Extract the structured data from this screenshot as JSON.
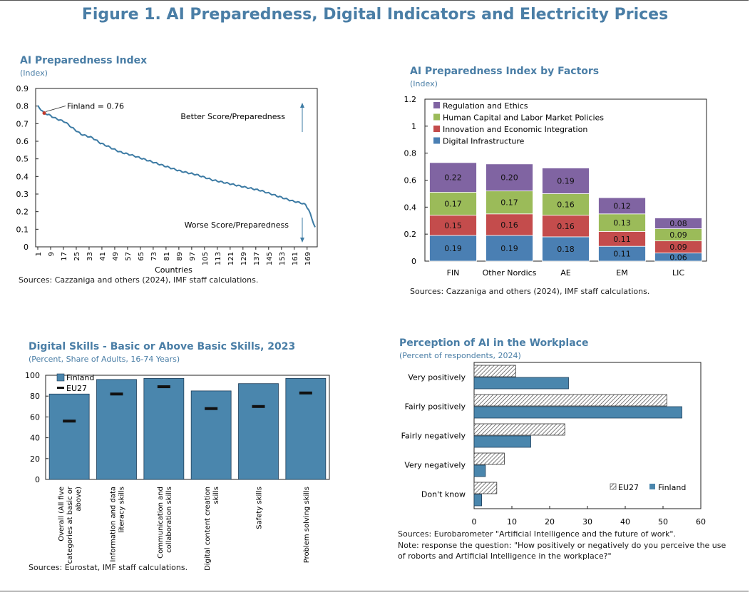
{
  "title": "Figure 1. AI Preparedness, Digital Indicators and Electricity Prices",
  "colors": {
    "title": "#4a7ea6",
    "line": "#3d7ba4",
    "bar": "#4a86ad",
    "di": "#4a7fb3",
    "ie": "#c44c4c",
    "hc": "#9bbb59",
    "re": "#8064a2",
    "finland": "#4a86ad"
  },
  "panel1": {
    "title": "AI Preparedness Index",
    "subtitle": "(Index)",
    "source": "Sources: Cazzaniga and others (2024), IMF staff calculations.",
    "finland_label": "Finland = 0.76",
    "better_label": "Better Score/Preparedness",
    "worse_label": "Worse Score/Preparedness",
    "chart_data": {
      "type": "line",
      "title": "AI Preparedness Index",
      "xlabel": "Countries",
      "ylabel": "(Index)",
      "ylim": [
        0,
        0.9
      ],
      "yticks": [
        "0",
        "0.1",
        "0.2",
        "0.3",
        "0.4",
        "0.5",
        "0.6",
        "0.7",
        "0.8",
        "0.9"
      ],
      "xticks": [
        "1",
        "9",
        "17",
        "25",
        "33",
        "41",
        "49",
        "57",
        "65",
        "73",
        "81",
        "89",
        "97",
        "105",
        "113",
        "121",
        "129",
        "137",
        "145",
        "153",
        "161",
        "169"
      ],
      "n": 174,
      "finland_rank": 5,
      "finland_value": 0.76,
      "anchors": [
        [
          1,
          0.8
        ],
        [
          3,
          0.78
        ],
        [
          5,
          0.76
        ],
        [
          8,
          0.75
        ],
        [
          12,
          0.73
        ],
        [
          18,
          0.71
        ],
        [
          22,
          0.68
        ],
        [
          28,
          0.64
        ],
        [
          35,
          0.62
        ],
        [
          40,
          0.59
        ],
        [
          45,
          0.57
        ],
        [
          52,
          0.54
        ],
        [
          60,
          0.52
        ],
        [
          70,
          0.49
        ],
        [
          80,
          0.46
        ],
        [
          90,
          0.43
        ],
        [
          100,
          0.41
        ],
        [
          110,
          0.38
        ],
        [
          120,
          0.36
        ],
        [
          130,
          0.34
        ],
        [
          140,
          0.32
        ],
        [
          150,
          0.29
        ],
        [
          160,
          0.26
        ],
        [
          165,
          0.25
        ],
        [
          168,
          0.24
        ],
        [
          170,
          0.21
        ],
        [
          172,
          0.16
        ],
        [
          174,
          0.11
        ]
      ]
    }
  },
  "panel2": {
    "title": "AI Preparedness Index by Factors",
    "subtitle": "(Index)",
    "source": "Sources: Cazzaniga and others (2024), IMF staff calculations.",
    "chart_data": {
      "type": "bar",
      "stacked": true,
      "categories": [
        "FIN",
        "Other Nordics",
        "AE",
        "EM",
        "LIC"
      ],
      "ylim": [
        0,
        1.2
      ],
      "yticks": [
        "0",
        "0.2",
        "0.4",
        "0.6",
        "0.8",
        "1",
        "1.2"
      ],
      "series": [
        {
          "name": "Digital Infrastructure",
          "values": [
            0.19,
            0.19,
            0.18,
            0.11,
            0.06
          ],
          "labels": [
            "0.19",
            "0.19",
            "0.18",
            "0.11",
            "0.06"
          ]
        },
        {
          "name": "Innovation and Economic Integration",
          "values": [
            0.15,
            0.16,
            0.16,
            0.11,
            0.09
          ],
          "labels": [
            "0.15",
            "0.16",
            "0.16",
            "0.11",
            "0.09"
          ]
        },
        {
          "name": "Human Capital and Labor Market Policies",
          "values": [
            0.17,
            0.17,
            0.16,
            0.13,
            0.09
          ],
          "labels": [
            "0.17",
            "0.17",
            "0.16",
            "0.13",
            "0.09"
          ]
        },
        {
          "name": "Regulation and Ethics",
          "values": [
            0.22,
            0.2,
            0.19,
            0.12,
            0.08
          ],
          "labels": [
            "0.22",
            "0.20",
            "0.19",
            "0.12",
            "0.08"
          ]
        }
      ],
      "legend_order": [
        "Regulation and Ethics",
        "Human Capital and Labor Market Policies",
        "Innovation and Economic Integration",
        "Digital Infrastructure"
      ]
    }
  },
  "panel3": {
    "title": "Digital Skills - Basic or Above Basic Skills, 2023",
    "subtitle": "(Percent, Share of Adults, 16-74 Years)",
    "source": "Sources: Eurostat, IMF staff calculations.",
    "chart_data": {
      "type": "bar",
      "categories": [
        "Overall (All five categories at basic or above)",
        "Information and data literacy skills",
        "Communication and collaboration skills",
        "Digital content creation skills",
        "Safety skills",
        "Problem solving skills"
      ],
      "category_lines": [
        [
          "Overall (All five",
          "categories at basic or",
          "above)"
        ],
        [
          "Information and data",
          "literacy skills"
        ],
        [
          "Communication and",
          "collaboration skills"
        ],
        [
          "Digital content creation",
          "skills"
        ],
        [
          "Safety skills"
        ],
        [
          "Problem solving skills"
        ]
      ],
      "ylim": [
        0,
        100
      ],
      "yticks": [
        "0",
        "20",
        "40",
        "60",
        "80",
        "100"
      ],
      "series": [
        {
          "name": "Finland",
          "values": [
            82,
            96,
            97,
            85,
            92,
            97
          ]
        },
        {
          "name": "EU27",
          "values": [
            56,
            82,
            89,
            68,
            70,
            83
          ]
        }
      ]
    }
  },
  "panel4": {
    "title": "Perception of AI in the Workplace",
    "subtitle": "(Percent of respondents, 2024)",
    "source": "Sources: Eurobarometer \"Artificial Intelligence and the future of work\".",
    "note1": "Note: response the question: \"How positively or negatively do you perceive the use",
    "note2": "of roborts and Artificial Intelligence in the workplace?\"",
    "chart_data": {
      "type": "bar",
      "orientation": "horizontal",
      "categories": [
        "Very positively",
        "Fairly positively",
        "Fairly negatively",
        "Very negatively",
        "Don't know"
      ],
      "xlim": [
        0,
        60
      ],
      "xticks": [
        "0",
        "10",
        "20",
        "30",
        "40",
        "50",
        "60"
      ],
      "series": [
        {
          "name": "EU27",
          "values": [
            11,
            51,
            24,
            8,
            6
          ]
        },
        {
          "name": "Finland",
          "values": [
            25,
            55,
            15,
            3,
            2
          ]
        }
      ]
    }
  }
}
